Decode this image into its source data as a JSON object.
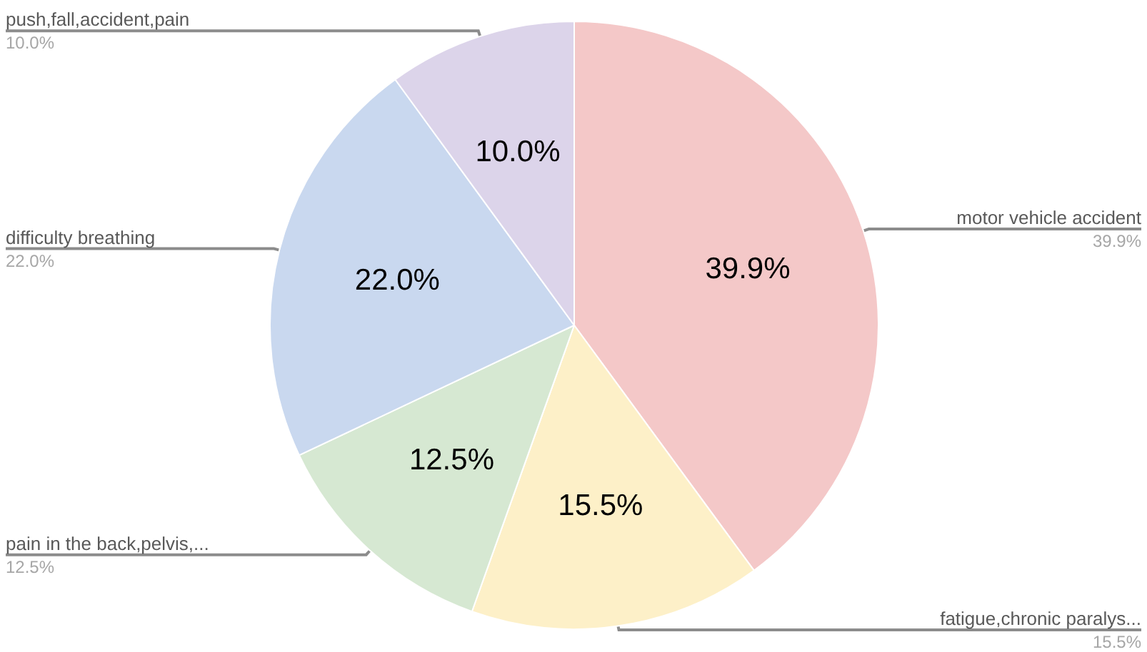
{
  "chart_data": {
    "type": "pie",
    "categories": [
      "motor vehicle accident",
      "fatigue,chronic paralys...",
      "pain in the back,pelvis,...",
      "difficulty breathing",
      "push,fall,accident,pain"
    ],
    "values": [
      39.9,
      15.5,
      12.5,
      22.0,
      10.0
    ],
    "value_labels": [
      "39.9%",
      "15.5%",
      "12.5%",
      "22.0%",
      "10.0%"
    ],
    "colors": [
      "#f4c8c8",
      "#fdf0c8",
      "#d6e8d2",
      "#c9d8ef",
      "#dcd4ea"
    ]
  }
}
